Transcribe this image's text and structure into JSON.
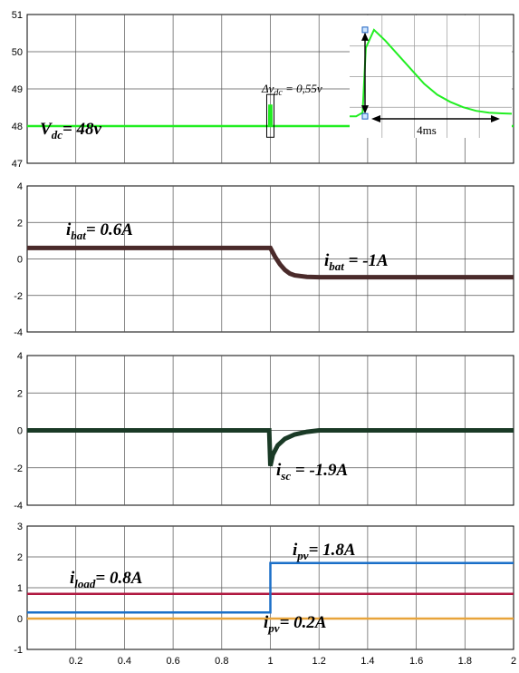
{
  "chart_data": [
    {
      "type": "line",
      "xlim": [
        0,
        2
      ],
      "ylim": [
        47,
        51
      ],
      "yticks": [
        47,
        48,
        49,
        50,
        51
      ],
      "x_tick_labels_shown": false,
      "grid": true,
      "series": [
        {
          "color": "#22ee22",
          "x": [
            0,
            0.995,
            0.996,
            1.004,
            1.005,
            1.4,
            2
          ],
          "y": [
            48,
            48,
            48.55,
            48.55,
            48,
            48,
            48
          ]
        }
      ],
      "annotations": [
        {
          "main": "V",
          "sub": "dc",
          "rest": "= 48v"
        },
        {
          "main": "Δv",
          "sub": "dc",
          "rest": " = 0,55v"
        }
      ],
      "inset": {
        "label": "4ms",
        "x": [
          0,
          0.04,
          0.08,
          0.1,
          0.15,
          0.22,
          0.3,
          0.38,
          0.46,
          0.54,
          0.62,
          0.7,
          0.78,
          0.86,
          0.94,
          1
        ],
        "y": [
          48.2,
          48.2,
          48.3,
          50.1,
          50.6,
          50.3,
          49.9,
          49.5,
          49.1,
          48.8,
          48.6,
          48.45,
          48.35,
          48.3,
          48.28,
          48.27
        ]
      }
    },
    {
      "type": "line",
      "xlim": [
        0,
        2
      ],
      "ylim": [
        -4,
        4
      ],
      "yticks": [
        -4,
        -2,
        0,
        2,
        4
      ],
      "x_tick_labels_shown": false,
      "grid": true,
      "series": [
        {
          "color": "#4a2a2a",
          "x": [
            0,
            1,
            1.02,
            1.04,
            1.06,
            1.08,
            1.1,
            1.15,
            1.2,
            2
          ],
          "y": [
            0.6,
            0.6,
            0.1,
            -0.3,
            -0.6,
            -0.8,
            -0.9,
            -0.98,
            -1,
            -1
          ]
        }
      ],
      "annotations": [
        {
          "main": "i",
          "sub": "bat",
          "rest": "= 0.6A"
        },
        {
          "main": "i",
          "sub": "bat",
          "rest": " = -1A"
        }
      ]
    },
    {
      "type": "line",
      "xlim": [
        0,
        2
      ],
      "ylim": [
        -4,
        4
      ],
      "yticks": [
        -4,
        -2,
        0,
        2,
        4
      ],
      "x_tick_labels_shown": false,
      "grid": true,
      "series": [
        {
          "color": "#1a3a26",
          "x": [
            0,
            0.995,
            1.0,
            1.01,
            1.03,
            1.06,
            1.1,
            1.15,
            1.2,
            2
          ],
          "y": [
            0,
            0,
            -1.9,
            -1.3,
            -0.8,
            -0.45,
            -0.22,
            -0.08,
            0,
            0
          ]
        }
      ],
      "annotations": [
        {
          "main": "i",
          "sub": "sc",
          "rest": " = -1.9A"
        }
      ]
    },
    {
      "type": "line",
      "xlim": [
        0,
        2
      ],
      "ylim": [
        -1,
        3
      ],
      "yticks": [
        -1,
        0,
        1,
        2,
        3
      ],
      "xticks": [
        "0.2",
        "0.4",
        "0.6",
        "0.8",
        "1",
        "1.2",
        "1.4",
        "1.6",
        "1.8",
        "2"
      ],
      "grid": true,
      "series": [
        {
          "color": "#e8a43a",
          "x": [
            0,
            2
          ],
          "y": [
            0,
            0
          ]
        },
        {
          "color": "#b01840",
          "x": [
            0,
            2
          ],
          "y": [
            0.8,
            0.8
          ]
        },
        {
          "color": "#1a6fc8",
          "x": [
            0,
            1,
            1,
            2
          ],
          "y": [
            0.2,
            0.2,
            1.8,
            1.8
          ]
        }
      ],
      "annotations": [
        {
          "main": "i",
          "sub": "load",
          "rest": "= 0.8A"
        },
        {
          "main": "i",
          "sub": "pv",
          "rest": "= 1.8A"
        },
        {
          "main": "i",
          "sub": "pv",
          "rest": "= 0.2A"
        }
      ]
    }
  ]
}
